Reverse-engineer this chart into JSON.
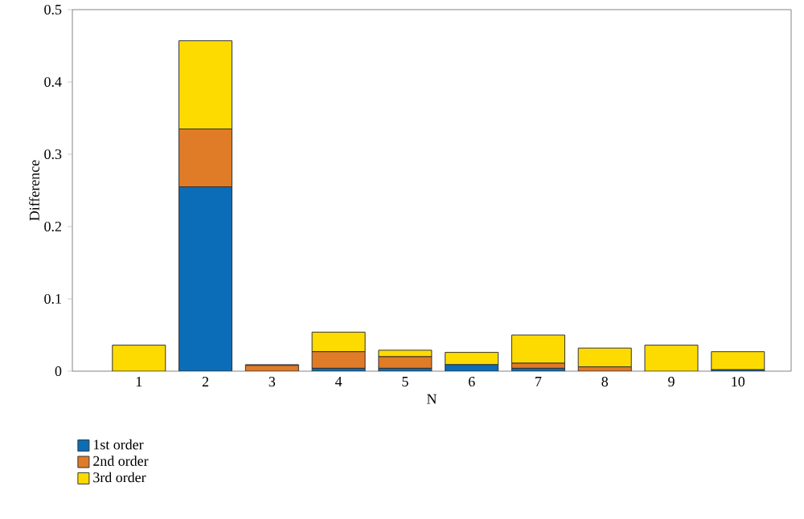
{
  "chart_data": {
    "type": "bar",
    "stacked": true,
    "xlabel": "N",
    "ylabel": "Difference",
    "categories": [
      "1",
      "2",
      "3",
      "4",
      "5",
      "6",
      "7",
      "8",
      "9",
      "10"
    ],
    "series": [
      {
        "name": "1st order",
        "color": "#0b6db7",
        "values": [
          0,
          0.255,
          null,
          0.004,
          0.004,
          0.009,
          0.004,
          null,
          0,
          0.002
        ]
      },
      {
        "name": "2nd order",
        "color": "#e07b28",
        "values": [
          0,
          0.08,
          0.008,
          0.023,
          0.016,
          0,
          0.007,
          0.006,
          0,
          0
        ]
      },
      {
        "name": "3rd order",
        "color": "#fddb00",
        "values": [
          0.036,
          0.122,
          0.001,
          0.027,
          0.009,
          0.017,
          0.039,
          0.026,
          0.036,
          0.025
        ]
      }
    ],
    "ylim": [
      0,
      0.5
    ],
    "yticks": [
      0,
      0.1,
      0.2,
      0.3,
      0.4,
      0.5
    ],
    "legend": "bottom left",
    "grid": false
  }
}
